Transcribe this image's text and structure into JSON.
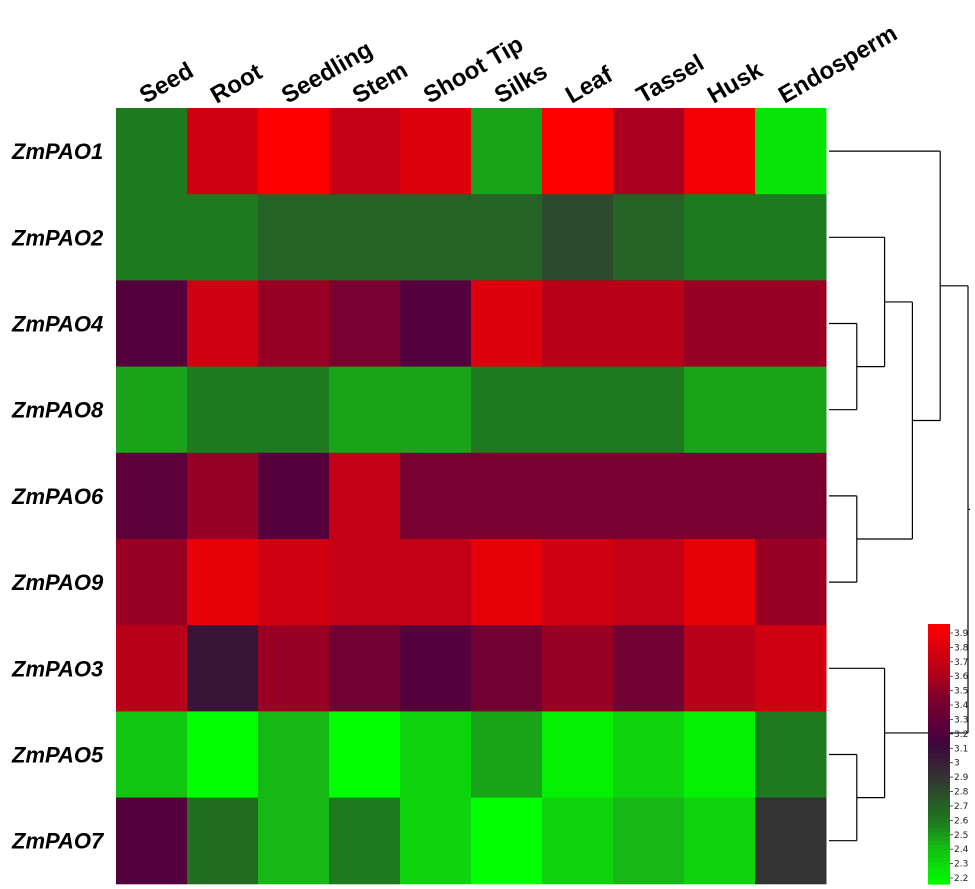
{
  "chart_data": {
    "type": "heatmap",
    "columns": [
      "Seed",
      "Root",
      "Seedling",
      "Stem",
      "Shoot Tip",
      "Silks",
      "Leaf",
      "Tassel",
      "Husk",
      "Endosperm"
    ],
    "rows": [
      "ZmPAO1",
      "ZmPAO2",
      "ZmPAO4",
      "ZmPAO8",
      "ZmPAO6",
      "ZmPAO9",
      "ZmPAO3",
      "ZmPAO5",
      "ZmPAO7"
    ],
    "values": [
      [
        2.6,
        3.7,
        3.95,
        3.65,
        3.75,
        2.5,
        3.9,
        3.55,
        3.85,
        2.3
      ],
      [
        2.6,
        2.6,
        2.7,
        2.7,
        2.7,
        2.7,
        2.8,
        2.7,
        2.6,
        2.6
      ],
      [
        3.2,
        3.7,
        3.5,
        3.4,
        3.2,
        3.75,
        3.6,
        3.6,
        3.5,
        3.5
      ],
      [
        2.5,
        2.6,
        2.6,
        2.5,
        2.5,
        2.6,
        2.6,
        2.6,
        2.5,
        2.5
      ],
      [
        3.25,
        3.5,
        3.2,
        3.65,
        3.4,
        3.4,
        3.4,
        3.4,
        3.4,
        3.4
      ],
      [
        3.5,
        3.8,
        3.7,
        3.65,
        3.65,
        3.8,
        3.7,
        3.65,
        3.8,
        3.5
      ],
      [
        3.6,
        3.05,
        3.5,
        3.35,
        3.2,
        3.35,
        3.5,
        3.35,
        3.6,
        3.7
      ],
      [
        2.4,
        2.2,
        2.45,
        2.2,
        2.35,
        2.5,
        2.25,
        2.35,
        2.25,
        2.6
      ],
      [
        3.2,
        2.65,
        2.45,
        2.6,
        2.35,
        2.2,
        2.35,
        2.45,
        2.35,
        2.9
      ]
    ],
    "legend": {
      "min": 2.2,
      "max": 3.9,
      "ticks": [
        "3.9",
        "3.8",
        "3.7",
        "3.6",
        "3.5",
        "3.4",
        "3.3",
        "3.2",
        "3.1",
        "3",
        "2.9",
        "2.8",
        "2.7",
        "2.6",
        "2.5",
        "2.4",
        "2.3",
        "2.2"
      ],
      "position": "bottom-right"
    },
    "color_scale": [
      {
        "v": 2.2,
        "color": "#00ff00"
      },
      {
        "v": 2.45,
        "color": "#15b815"
      },
      {
        "v": 2.6,
        "color": "#1e7a1e"
      },
      {
        "v": 2.9,
        "color": "#333333"
      },
      {
        "v": 3.1,
        "color": "#3a0a3a"
      },
      {
        "v": 3.2,
        "color": "#55003c"
      },
      {
        "v": 3.4,
        "color": "#7a0030"
      },
      {
        "v": 3.6,
        "color": "#b80018"
      },
      {
        "v": 3.9,
        "color": "#ff0000"
      }
    ],
    "row_dendrogram": "((ZmPAO1,((ZmPAO2,(ZmPAO4,ZmPAO8)),(ZmPAO6,ZmPAO9))),(ZmPAO3,(ZmPAO5,ZmPAO7)))"
  }
}
